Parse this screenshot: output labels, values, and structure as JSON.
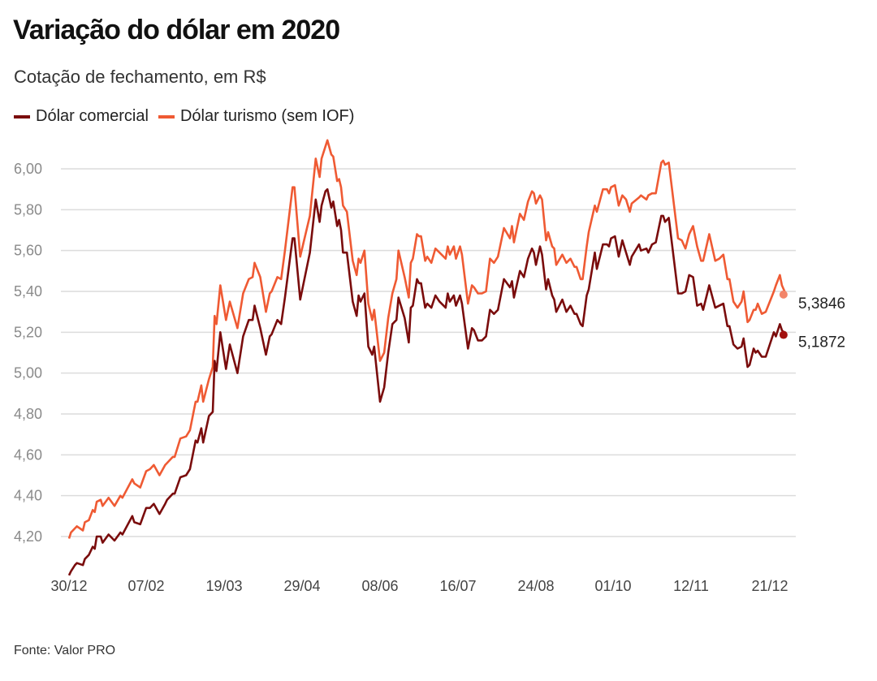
{
  "title": "Variação do dólar em 2020",
  "subtitle": "Cotação de fechamento, em R$",
  "source": "Fonte: Valor PRO",
  "chart_data": {
    "type": "line",
    "title": "Variação do dólar em 2020",
    "subtitle": "Cotação de fechamento, em R$",
    "ylim": [
      4.0,
      6.2
    ],
    "grid": true,
    "legend_placement": "top-left",
    "y_ticks": [
      {
        "value": 4.2,
        "label": "4,20"
      },
      {
        "value": 4.4,
        "label": "4,40"
      },
      {
        "value": 4.6,
        "label": "4,60"
      },
      {
        "value": 4.8,
        "label": "4,80"
      },
      {
        "value": 5.0,
        "label": "5,00"
      },
      {
        "value": 5.2,
        "label": "5,20"
      },
      {
        "value": 5.4,
        "label": "5,40"
      },
      {
        "value": 5.6,
        "label": "5,60"
      },
      {
        "value": 5.8,
        "label": "5,80"
      },
      {
        "value": 6.0,
        "label": "6,00"
      }
    ],
    "x_ticks": [
      {
        "date": "2019-12-30",
        "label": "30/12"
      },
      {
        "date": "2020-02-07",
        "label": "07/02"
      },
      {
        "date": "2020-03-19",
        "label": "19/03"
      },
      {
        "date": "2020-04-29",
        "label": "29/04"
      },
      {
        "date": "2020-06-08",
        "label": "08/06"
      },
      {
        "date": "2020-07-16",
        "label": "16/07"
      },
      {
        "date": "2020-08-24",
        "label": "24/08"
      },
      {
        "date": "2020-10-01",
        "label": "01/10"
      },
      {
        "date": "2020-11-12",
        "label": "12/11"
      },
      {
        "date": "2020-12-21",
        "label": "21/12"
      }
    ],
    "series": [
      {
        "name": "Dólar comercial",
        "color": "#7a0c0c",
        "end_color": "#a3110f",
        "end_label": "5,1872"
      },
      {
        "name": "Dólar turismo (sem IOF)",
        "color": "#ef5a33",
        "end_color": "#f2856a",
        "end_label": "5,3846"
      }
    ],
    "rows": [
      [
        "2019-12-30",
        4.01,
        4.19
      ],
      [
        "2019-12-31",
        4.03,
        4.22
      ],
      [
        "2020-01-02",
        4.06,
        4.24
      ],
      [
        "2020-01-03",
        4.07,
        4.25
      ],
      [
        "2020-01-06",
        4.06,
        4.23
      ],
      [
        "2020-01-07",
        4.09,
        4.27
      ],
      [
        "2020-01-09",
        4.11,
        4.28
      ],
      [
        "2020-01-11",
        4.15,
        4.33
      ],
      [
        "2020-01-12",
        4.14,
        4.32
      ],
      [
        "2020-01-13",
        4.2,
        4.37
      ],
      [
        "2020-01-15",
        4.2,
        4.38
      ],
      [
        "2020-01-16",
        4.17,
        4.35
      ],
      [
        "2020-01-19",
        4.21,
        4.39
      ],
      [
        "2020-01-22",
        4.18,
        4.35
      ],
      [
        "2020-01-25",
        4.22,
        4.4
      ],
      [
        "2020-01-26",
        4.21,
        4.39
      ],
      [
        "2020-01-31",
        4.3,
        4.48
      ],
      [
        "2020-02-01",
        4.27,
        4.46
      ],
      [
        "2020-02-04",
        4.26,
        4.44
      ],
      [
        "2020-02-07",
        4.34,
        4.52
      ],
      [
        "2020-02-09",
        4.34,
        4.53
      ],
      [
        "2020-02-11",
        4.36,
        4.55
      ],
      [
        "2020-02-14",
        4.31,
        4.5
      ],
      [
        "2020-02-17",
        4.36,
        4.55
      ],
      [
        "2020-02-18",
        4.38,
        4.56
      ],
      [
        "2020-02-21",
        4.41,
        4.59
      ],
      [
        "2020-02-22",
        4.41,
        4.59
      ],
      [
        "2020-02-25",
        4.49,
        4.68
      ],
      [
        "2020-02-28",
        4.5,
        4.69
      ],
      [
        "2020-03-01",
        4.53,
        4.72
      ],
      [
        "2020-03-04",
        4.67,
        4.86
      ],
      [
        "2020-03-05",
        4.66,
        4.86
      ],
      [
        "2020-03-07",
        4.73,
        4.94
      ],
      [
        "2020-03-08",
        4.66,
        4.86
      ],
      [
        "2020-03-11",
        4.79,
        4.97
      ],
      [
        "2020-03-13",
        4.81,
        5.03
      ],
      [
        "2020-03-14",
        5.06,
        5.28
      ],
      [
        "2020-03-15",
        5.01,
        5.24
      ],
      [
        "2020-03-17",
        5.2,
        5.43
      ],
      [
        "2020-03-20",
        5.02,
        5.26
      ],
      [
        "2020-03-22",
        5.14,
        5.35
      ],
      [
        "2020-03-26",
        5.0,
        5.22
      ],
      [
        "2020-03-29",
        5.18,
        5.39
      ],
      [
        "2020-04-01",
        5.26,
        5.46
      ],
      [
        "2020-04-03",
        5.26,
        5.47
      ],
      [
        "2020-04-04",
        5.33,
        5.54
      ],
      [
        "2020-04-07",
        5.22,
        5.47
      ],
      [
        "2020-04-10",
        5.09,
        5.3
      ],
      [
        "2020-04-12",
        5.18,
        5.39
      ],
      [
        "2020-04-13",
        5.19,
        5.4
      ],
      [
        "2020-04-16",
        5.26,
        5.47
      ],
      [
        "2020-04-18",
        5.24,
        5.46
      ],
      [
        "2020-04-20",
        5.37,
        5.6
      ],
      [
        "2020-04-24",
        5.66,
        5.91
      ],
      [
        "2020-04-25",
        5.66,
        5.91
      ],
      [
        "2020-04-28",
        5.36,
        5.57
      ],
      [
        "2020-05-03",
        5.59,
        5.77
      ],
      [
        "2020-05-06",
        5.85,
        6.05
      ],
      [
        "2020-05-08",
        5.74,
        5.96
      ],
      [
        "2020-05-09",
        5.82,
        6.05
      ],
      [
        "2020-05-11",
        5.89,
        6.11
      ],
      [
        "2020-05-12",
        5.9,
        6.14
      ],
      [
        "2020-05-14",
        5.81,
        6.07
      ],
      [
        "2020-05-15",
        5.84,
        6.06
      ],
      [
        "2020-05-17",
        5.72,
        5.94
      ],
      [
        "2020-05-18",
        5.75,
        5.95
      ],
      [
        "2020-05-19",
        5.7,
        5.91
      ],
      [
        "2020-05-20",
        5.59,
        5.82
      ],
      [
        "2020-05-22",
        5.59,
        5.79
      ],
      [
        "2020-05-25",
        5.35,
        5.55
      ],
      [
        "2020-05-27",
        5.28,
        5.48
      ],
      [
        "2020-05-28",
        5.38,
        5.56
      ],
      [
        "2020-05-29",
        5.35,
        5.54
      ],
      [
        "2020-05-31",
        5.39,
        5.6
      ],
      [
        "2020-06-02",
        5.13,
        5.34
      ],
      [
        "2020-06-04",
        5.09,
        5.26
      ],
      [
        "2020-06-05",
        5.13,
        5.31
      ],
      [
        "2020-06-08",
        4.86,
        5.06
      ],
      [
        "2020-06-10",
        4.93,
        5.1
      ],
      [
        "2020-06-12",
        5.1,
        5.27
      ],
      [
        "2020-06-14",
        5.24,
        5.39
      ],
      [
        "2020-06-16",
        5.26,
        5.46
      ],
      [
        "2020-06-17",
        5.37,
        5.6
      ],
      [
        "2020-06-20",
        5.27,
        5.47
      ],
      [
        "2020-06-22",
        5.15,
        5.37
      ],
      [
        "2020-06-23",
        5.32,
        5.54
      ],
      [
        "2020-06-24",
        5.33,
        5.56
      ],
      [
        "2020-06-26",
        5.46,
        5.68
      ],
      [
        "2020-06-27",
        5.44,
        5.67
      ],
      [
        "2020-06-28",
        5.44,
        5.67
      ],
      [
        "2020-06-30",
        5.32,
        5.55
      ],
      [
        "2020-07-01",
        5.34,
        5.57
      ],
      [
        "2020-07-03",
        5.32,
        5.54
      ],
      [
        "2020-07-05",
        5.38,
        5.61
      ],
      [
        "2020-07-07",
        5.35,
        5.59
      ],
      [
        "2020-07-10",
        5.32,
        5.56
      ],
      [
        "2020-07-11",
        5.39,
        5.62
      ],
      [
        "2020-07-12",
        5.35,
        5.58
      ],
      [
        "2020-07-14",
        5.38,
        5.62
      ],
      [
        "2020-07-15",
        5.33,
        5.56
      ],
      [
        "2020-07-17",
        5.38,
        5.62
      ],
      [
        "2020-07-18",
        5.34,
        5.58
      ],
      [
        "2020-07-21",
        5.12,
        5.34
      ],
      [
        "2020-07-23",
        5.22,
        5.43
      ],
      [
        "2020-07-24",
        5.21,
        5.42
      ],
      [
        "2020-07-26",
        5.16,
        5.39
      ],
      [
        "2020-07-28",
        5.16,
        5.39
      ],
      [
        "2020-07-30",
        5.18,
        5.4
      ],
      [
        "2020-08-01",
        5.31,
        5.56
      ],
      [
        "2020-08-03",
        5.29,
        5.54
      ],
      [
        "2020-08-05",
        5.31,
        5.57
      ],
      [
        "2020-08-08",
        5.46,
        5.71
      ],
      [
        "2020-08-11",
        5.42,
        5.66
      ],
      [
        "2020-08-12",
        5.45,
        5.72
      ],
      [
        "2020-08-13",
        5.37,
        5.64
      ],
      [
        "2020-08-16",
        5.5,
        5.78
      ],
      [
        "2020-08-18",
        5.47,
        5.75
      ],
      [
        "2020-08-20",
        5.56,
        5.84
      ],
      [
        "2020-08-22",
        5.61,
        5.89
      ],
      [
        "2020-08-23",
        5.59,
        5.88
      ],
      [
        "2020-08-24",
        5.53,
        5.83
      ],
      [
        "2020-08-26",
        5.62,
        5.87
      ],
      [
        "2020-08-27",
        5.58,
        5.85
      ],
      [
        "2020-08-29",
        5.41,
        5.65
      ],
      [
        "2020-08-30",
        5.46,
        5.69
      ],
      [
        "2020-09-01",
        5.38,
        5.62
      ],
      [
        "2020-09-02",
        5.36,
        5.61
      ],
      [
        "2020-09-03",
        5.3,
        5.53
      ],
      [
        "2020-09-06",
        5.36,
        5.58
      ],
      [
        "2020-09-08",
        5.3,
        5.54
      ],
      [
        "2020-09-10",
        5.33,
        5.56
      ],
      [
        "2020-09-12",
        5.29,
        5.52
      ],
      [
        "2020-09-13",
        5.29,
        5.52
      ],
      [
        "2020-09-15",
        5.24,
        5.46
      ],
      [
        "2020-09-16",
        5.23,
        5.46
      ],
      [
        "2020-09-18",
        5.38,
        5.62
      ],
      [
        "2020-09-19",
        5.41,
        5.69
      ],
      [
        "2020-09-22",
        5.59,
        5.82
      ],
      [
        "2020-09-23",
        5.51,
        5.79
      ],
      [
        "2020-09-26",
        5.63,
        5.9
      ],
      [
        "2020-09-28",
        5.63,
        5.9
      ],
      [
        "2020-09-29",
        5.62,
        5.88
      ],
      [
        "2020-09-30",
        5.66,
        5.91
      ],
      [
        "2020-10-02",
        5.67,
        5.92
      ],
      [
        "2020-10-04",
        5.57,
        5.82
      ],
      [
        "2020-10-06",
        5.65,
        5.87
      ],
      [
        "2020-10-08",
        5.59,
        5.85
      ],
      [
        "2020-10-10",
        5.53,
        5.79
      ],
      [
        "2020-10-11",
        5.57,
        5.83
      ],
      [
        "2020-10-15",
        5.63,
        5.86
      ],
      [
        "2020-10-16",
        5.6,
        5.87
      ],
      [
        "2020-10-19",
        5.61,
        5.85
      ],
      [
        "2020-10-20",
        5.59,
        5.87
      ],
      [
        "2020-10-22",
        5.63,
        5.88
      ],
      [
        "2020-10-24",
        5.64,
        5.88
      ],
      [
        "2020-10-27",
        5.77,
        6.03
      ],
      [
        "2020-10-28",
        5.77,
        6.04
      ],
      [
        "2020-10-29",
        5.74,
        6.02
      ],
      [
        "2020-10-31",
        5.76,
        6.03
      ],
      [
        "2020-11-05",
        5.39,
        5.66
      ],
      [
        "2020-11-07",
        5.39,
        5.65
      ],
      [
        "2020-11-09",
        5.4,
        5.61
      ],
      [
        "2020-11-11",
        5.48,
        5.68
      ],
      [
        "2020-11-13",
        5.47,
        5.72
      ],
      [
        "2020-11-15",
        5.33,
        5.62
      ],
      [
        "2020-11-17",
        5.34,
        5.55
      ],
      [
        "2020-11-18",
        5.31,
        5.55
      ],
      [
        "2020-11-21",
        5.43,
        5.68
      ],
      [
        "2020-11-24",
        5.32,
        5.55
      ],
      [
        "2020-11-26",
        5.33,
        5.56
      ],
      [
        "2020-11-28",
        5.34,
        5.58
      ],
      [
        "2020-11-30",
        5.23,
        5.46
      ],
      [
        "2020-12-01",
        5.23,
        5.46
      ],
      [
        "2020-12-03",
        5.14,
        5.35
      ],
      [
        "2020-12-05",
        5.12,
        5.32
      ],
      [
        "2020-12-07",
        5.13,
        5.35
      ],
      [
        "2020-12-08",
        5.17,
        5.4
      ],
      [
        "2020-12-10",
        5.03,
        5.25
      ],
      [
        "2020-12-11",
        5.04,
        5.26
      ],
      [
        "2020-12-13",
        5.12,
        5.31
      ],
      [
        "2020-12-14",
        5.1,
        5.31
      ],
      [
        "2020-12-15",
        5.11,
        5.34
      ],
      [
        "2020-12-17",
        5.08,
        5.29
      ],
      [
        "2020-12-19",
        5.08,
        5.3
      ],
      [
        "2020-12-21",
        5.14,
        5.35
      ],
      [
        "2020-12-23",
        5.2,
        5.4
      ],
      [
        "2020-12-24",
        5.18,
        5.43
      ],
      [
        "2020-12-26",
        5.24,
        5.48
      ],
      [
        "2020-12-27",
        5.21,
        5.43
      ],
      [
        "2020-12-29",
        5.1872,
        5.3846
      ]
    ]
  }
}
